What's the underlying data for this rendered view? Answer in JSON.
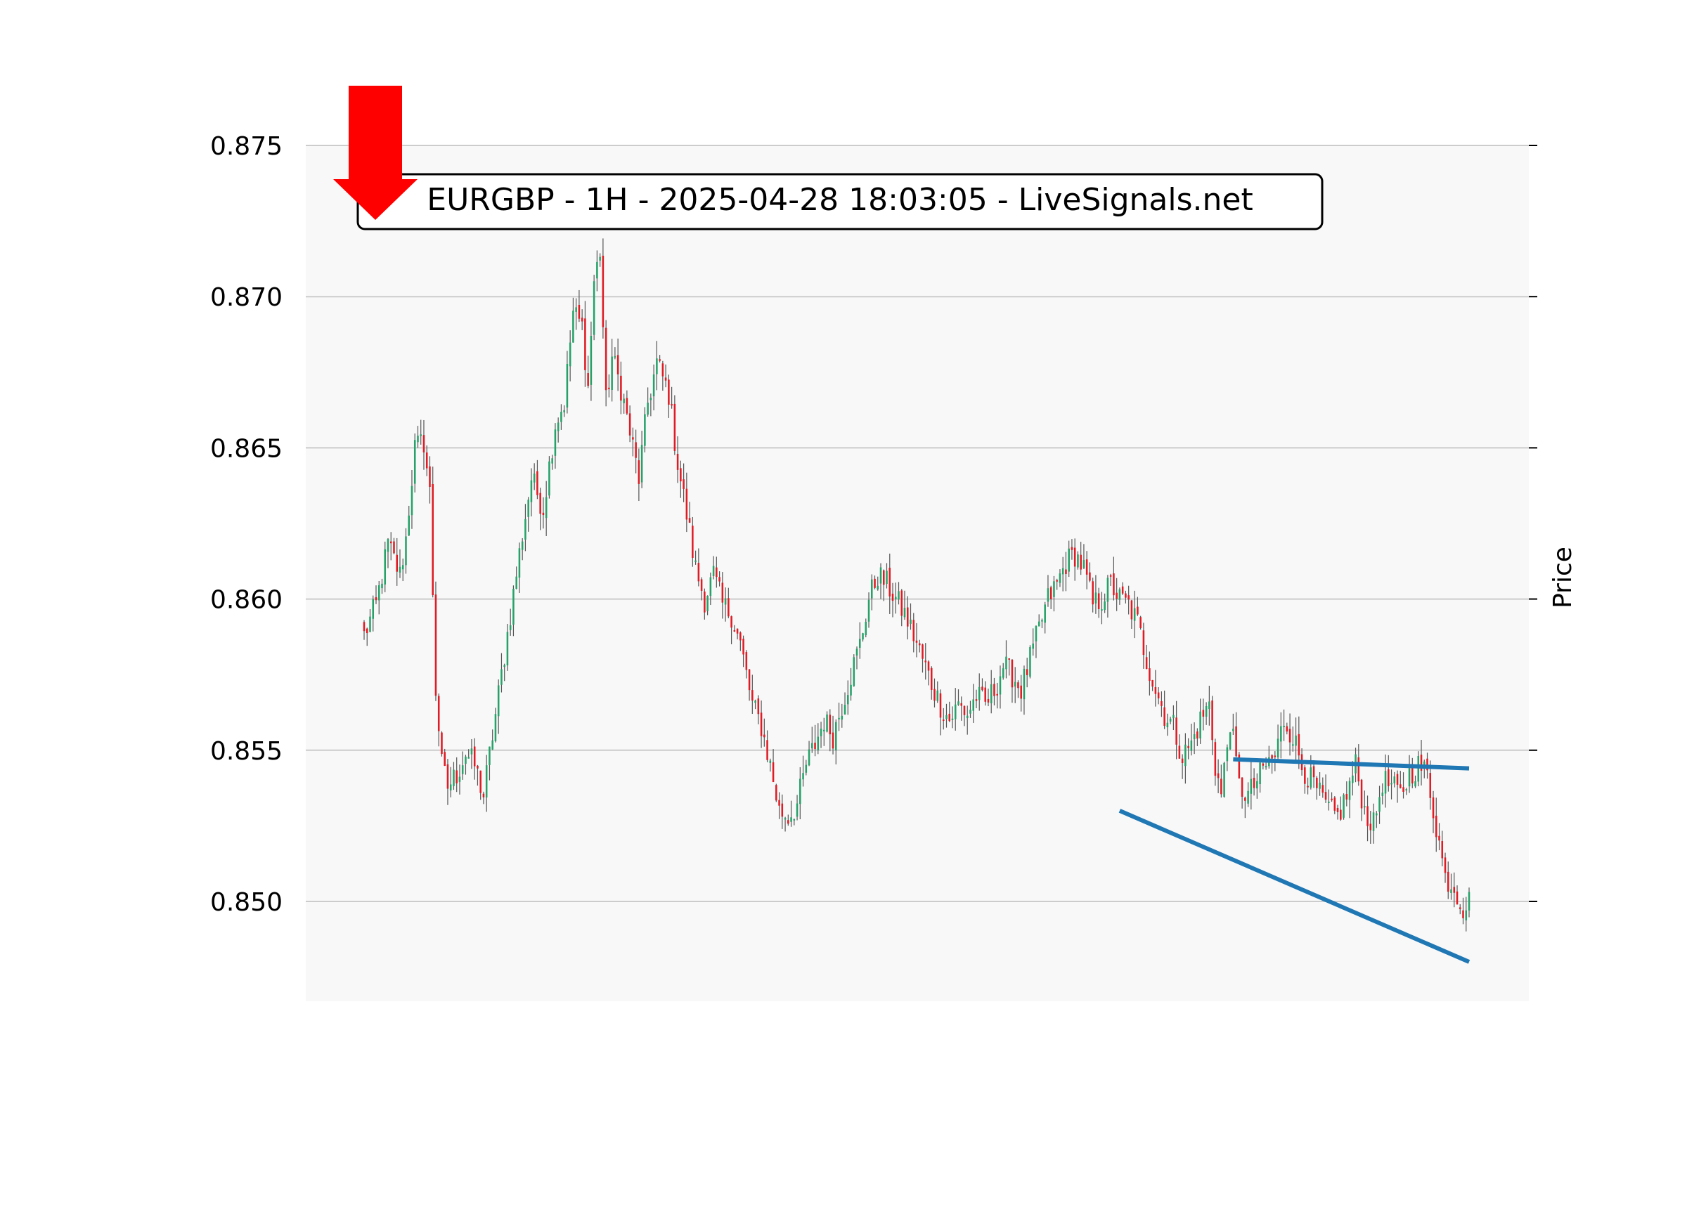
{
  "colors": {
    "background": "#ffffff",
    "plot_background": "#f8f8f8",
    "grid": "#cccccc",
    "up_candle": "#26a269",
    "down_candle": "#e01b24",
    "wick": "#555555",
    "trendline": "#1f77b4",
    "signal_arrow": "#ff0000",
    "title_box_border": "#000000"
  },
  "chart_data": {
    "type": "candlestick",
    "title": "EURGBP - 1H - 2025-04-28 18:03:05 - LiveSignals.net",
    "ylabel": "Price",
    "xlabel": "",
    "ylim": [
      0.8467,
      0.875
    ],
    "yticks": [
      "0.850",
      "0.855",
      "0.860",
      "0.865",
      "0.870",
      "0.875"
    ],
    "ytick_values": [
      0.85,
      0.855,
      0.86,
      0.865,
      0.87,
      0.875
    ],
    "ytick_side": "left",
    "ylabel_side": "right",
    "grid": true,
    "legend": "none",
    "signal": {
      "direction": "down",
      "icon": "down-arrow-icon",
      "placement": "top-left"
    },
    "bar_count": 250,
    "close_anchors": [
      [
        0,
        0.8588
      ],
      [
        4,
        0.8598
      ],
      [
        8,
        0.8618
      ],
      [
        12,
        0.8608
      ],
      [
        14,
        0.862
      ],
      [
        17,
        0.865
      ],
      [
        20,
        0.8652
      ],
      [
        22,
        0.8635
      ],
      [
        24,
        0.857
      ],
      [
        26,
        0.8545
      ],
      [
        28,
        0.8538
      ],
      [
        31,
        0.8542
      ],
      [
        34,
        0.8549
      ],
      [
        37,
        0.8545
      ],
      [
        40,
        0.8535
      ],
      [
        43,
        0.8555
      ],
      [
        46,
        0.8575
      ],
      [
        49,
        0.8595
      ],
      [
        52,
        0.8615
      ],
      [
        56,
        0.864
      ],
      [
        60,
        0.863
      ],
      [
        64,
        0.8658
      ],
      [
        67,
        0.8665
      ],
      [
        70,
        0.8695
      ],
      [
        73,
        0.869
      ],
      [
        75,
        0.867
      ],
      [
        77,
        0.8705
      ],
      [
        79,
        0.8715
      ],
      [
        81,
        0.8665
      ],
      [
        83,
        0.868
      ],
      [
        86,
        0.867
      ],
      [
        89,
        0.8655
      ],
      [
        92,
        0.864
      ],
      [
        95,
        0.8665
      ],
      [
        98,
        0.8678
      ],
      [
        102,
        0.8668
      ],
      [
        105,
        0.8645
      ],
      [
        108,
        0.8628
      ],
      [
        111,
        0.861
      ],
      [
        114,
        0.86
      ],
      [
        117,
        0.8608
      ],
      [
        120,
        0.8598
      ],
      [
        123,
        0.8595
      ],
      [
        126,
        0.8585
      ],
      [
        130,
        0.8565
      ],
      [
        133,
        0.8558
      ],
      [
        136,
        0.8545
      ],
      [
        139,
        0.853
      ],
      [
        142,
        0.8528
      ],
      [
        145,
        0.8532
      ],
      [
        148,
        0.8545
      ],
      [
        151,
        0.8552
      ],
      [
        154,
        0.856
      ],
      [
        157,
        0.8555
      ],
      [
        160,
        0.8565
      ],
      [
        163,
        0.8575
      ],
      [
        166,
        0.8585
      ],
      [
        169,
        0.86
      ],
      [
        172,
        0.8608
      ],
      [
        175,
        0.8605
      ],
      [
        178,
        0.86
      ],
      [
        181,
        0.8595
      ],
      [
        184,
        0.8588
      ],
      [
        187,
        0.858
      ],
      [
        190,
        0.8572
      ],
      [
        193,
        0.8565
      ],
      [
        196,
        0.856
      ],
      [
        199,
        0.8565
      ],
      [
        202,
        0.8562
      ],
      [
        205,
        0.8568
      ],
      [
        208,
        0.8565
      ],
      [
        211,
        0.857
      ],
      [
        214,
        0.8578
      ],
      [
        217,
        0.8575
      ],
      [
        220,
        0.857
      ],
      [
        223,
        0.858
      ],
      [
        226,
        0.859
      ],
      [
        229,
        0.86
      ],
      [
        232,
        0.8605
      ],
      [
        235,
        0.8612
      ],
      [
        238,
        0.8615
      ],
      [
        241,
        0.861
      ],
      [
        244,
        0.8598
      ]
    ],
    "close_anchors_tail": [
      [
        244,
        0.8598
      ],
      [
        247,
        0.86
      ],
      [
        250,
        0.8605
      ],
      [
        253,
        0.86
      ],
      [
        256,
        0.8598
      ],
      [
        259,
        0.8592
      ],
      [
        262,
        0.858
      ],
      [
        265,
        0.857
      ],
      [
        268,
        0.8562
      ],
      [
        271,
        0.8558
      ],
      [
        274,
        0.8548
      ],
      [
        277,
        0.8552
      ],
      [
        280,
        0.856
      ],
      [
        283,
        0.8565
      ],
      [
        285,
        0.8545
      ],
      [
        287,
        0.8535
      ],
      [
        290,
        0.856
      ],
      [
        293,
        0.8538
      ],
      [
        296,
        0.8535
      ],
      [
        299,
        0.854
      ],
      [
        302,
        0.8545
      ],
      [
        305,
        0.8548
      ],
      [
        308,
        0.856
      ],
      [
        311,
        0.8555
      ],
      [
        314,
        0.8545
      ],
      [
        317,
        0.854
      ],
      [
        320,
        0.8535
      ],
      [
        323,
        0.853
      ],
      [
        326,
        0.8528
      ],
      [
        329,
        0.8535
      ],
      [
        332,
        0.8545
      ],
      [
        335,
        0.853
      ],
      [
        338,
        0.8525
      ],
      [
        341,
        0.854
      ],
      [
        344,
        0.8538
      ],
      [
        347,
        0.8535
      ],
      [
        350,
        0.8542
      ],
      [
        353,
        0.8545
      ],
      [
        356,
        0.8542
      ],
      [
        359,
        0.8525
      ],
      [
        362,
        0.8508
      ],
      [
        365,
        0.8505
      ],
      [
        368,
        0.8498
      ],
      [
        370,
        0.85
      ]
    ],
    "bar_count_total": 371,
    "trendlines": [
      {
        "from": [
          291,
          0.8547
        ],
        "to": [
          370,
          0.8544
        ]
      },
      {
        "from": [
          253,
          0.853
        ],
        "to": [
          370,
          0.848
        ]
      }
    ]
  }
}
